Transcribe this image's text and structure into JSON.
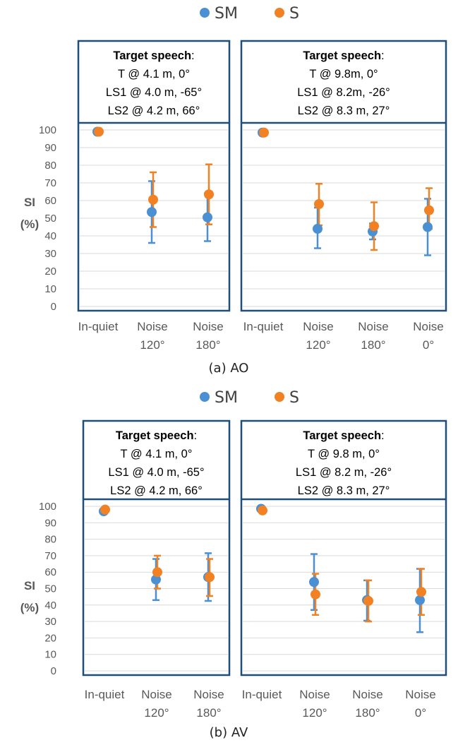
{
  "legend": [
    {
      "name": "SM",
      "color": "#4a90d2"
    },
    {
      "name": "S",
      "color": "#f28123"
    }
  ],
  "y_axis": {
    "label_line1": "SI",
    "label_line2": "(%)",
    "ticks": [
      "0",
      "10",
      "20",
      "30",
      "40",
      "50",
      "60",
      "70",
      "80",
      "90",
      "100"
    ]
  },
  "panels_colors": {
    "frame": "#1f4e79",
    "grid": "#d9d9d9"
  },
  "chart_data": [
    {
      "type": "scatter",
      "caption": "(a) AO",
      "ylim": [
        0,
        100
      ],
      "subplots": [
        {
          "info": {
            "head": "Target speech",
            "colon": ":",
            "lines": [
              "T @ 4.1 m, 0°",
              "LS1 @ 4.0 m, -65°",
              "LS2 @ 4.2 m, 66°"
            ]
          },
          "categories": [
            [
              "In-quiet"
            ],
            [
              "Noise",
              "120°"
            ],
            [
              "Noise",
              "180°"
            ]
          ],
          "series": [
            {
              "name": "SM",
              "values": [
                99,
                53.5,
                50.5
              ],
              "err_low": [
                98,
                36,
                37
              ],
              "err_high": [
                100,
                71,
                64
              ]
            },
            {
              "name": "S",
              "values": [
                99,
                60.5,
                63.5
              ],
              "err_low": [
                98,
                45,
                46.5
              ],
              "err_high": [
                100,
                76,
                80.5
              ]
            }
          ]
        },
        {
          "info": {
            "head": "Target speech",
            "colon": ":",
            "lines": [
              "T @ 9.8m, 0°",
              "LS1 @ 8.2m, -26°",
              "LS2 @ 8.3 m, 27°"
            ]
          },
          "categories": [
            [
              "In-quiet"
            ],
            [
              "Noise",
              "120°"
            ],
            [
              "Noise",
              "180°"
            ],
            [
              "Noise",
              "0°"
            ]
          ],
          "series": [
            {
              "name": "SM",
              "values": [
                98.5,
                44,
                42.5,
                45
              ],
              "err_low": [
                97.5,
                33,
                38,
                29
              ],
              "err_high": [
                99.5,
                56,
                47,
                61
              ]
            },
            {
              "name": "S",
              "values": [
                98.5,
                58,
                45.5,
                54.5
              ],
              "err_low": [
                97.5,
                46,
                32,
                44
              ],
              "err_high": [
                99.5,
                69.5,
                59,
                67
              ]
            }
          ]
        }
      ]
    },
    {
      "type": "scatter",
      "caption": "(b) AV",
      "ylim": [
        0,
        100
      ],
      "subplots": [
        {
          "info": {
            "head": "Target speech",
            "colon": ":",
            "lines": [
              "T @ 4.1 m, 0°",
              "LS1 @ 4.0 m, -65°",
              "LS2 @ 4.2 m, 66°"
            ]
          },
          "categories": [
            [
              "In-quiet"
            ],
            [
              "Noise",
              "120°"
            ],
            [
              "Noise",
              "180°"
            ]
          ],
          "series": [
            {
              "name": "SM",
              "values": [
                97,
                55.5,
                57
              ],
              "err_low": [
                95.5,
                43,
                42.5
              ],
              "err_high": [
                98.5,
                68,
                71.5
              ]
            },
            {
              "name": "S",
              "values": [
                98,
                60,
                57
              ],
              "err_low": [
                97,
                50,
                45.5
              ],
              "err_high": [
                99,
                70,
                68
              ]
            }
          ]
        },
        {
          "info": {
            "head": "Target speech",
            "colon": ":",
            "lines": [
              "T @ 9.8 m, 0°",
              "LS1 @ 8.2 m, -26°",
              "LS2 @ 8.3 m, 27°"
            ]
          },
          "categories": [
            [
              "In-quiet"
            ],
            [
              "Noise",
              "120°"
            ],
            [
              "Noise",
              "180°"
            ],
            [
              "Noise",
              "0°"
            ]
          ],
          "series": [
            {
              "name": "SM",
              "values": [
                98.5,
                54,
                43,
                43
              ],
              "err_low": [
                97.5,
                37,
                30.5,
                23.5
              ],
              "err_high": [
                99.5,
                71,
                55,
                62
              ]
            },
            {
              "name": "S",
              "values": [
                97.5,
                46.5,
                42.5,
                48
              ],
              "err_low": [
                96.5,
                34,
                30,
                34
              ],
              "err_high": [
                98.5,
                59,
                55,
                62
              ]
            }
          ]
        }
      ]
    }
  ]
}
